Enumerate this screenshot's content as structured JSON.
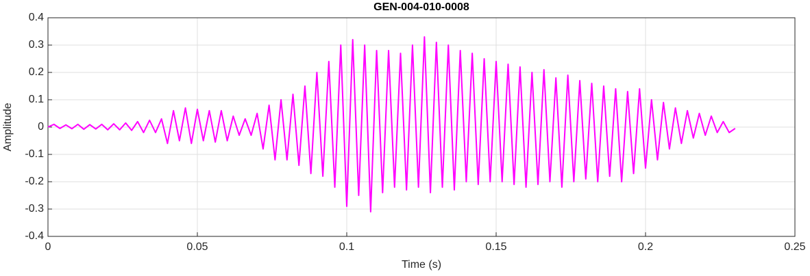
{
  "chart_data": {
    "type": "line",
    "title": "GEN-004-010-0008",
    "xlabel": "Time (s)",
    "ylabel": "Amplitude",
    "x": [
      0,
      0.002,
      0.004,
      0.006,
      0.008,
      0.01,
      0.012,
      0.014,
      0.016,
      0.018,
      0.02,
      0.022,
      0.024,
      0.026,
      0.028,
      0.03,
      0.032,
      0.034,
      0.036,
      0.038,
      0.04,
      0.042,
      0.044,
      0.046,
      0.048,
      0.05,
      0.052,
      0.054,
      0.056,
      0.058,
      0.06,
      0.062,
      0.064,
      0.066,
      0.068,
      0.07,
      0.072,
      0.074,
      0.076,
      0.078,
      0.08,
      0.082,
      0.084,
      0.086,
      0.088,
      0.09,
      0.092,
      0.094,
      0.096,
      0.098,
      0.1,
      0.102,
      0.104,
      0.106,
      0.108,
      0.11,
      0.112,
      0.114,
      0.116,
      0.118,
      0.12,
      0.122,
      0.124,
      0.126,
      0.128,
      0.13,
      0.132,
      0.134,
      0.136,
      0.138,
      0.14,
      0.142,
      0.144,
      0.146,
      0.148,
      0.15,
      0.152,
      0.154,
      0.156,
      0.158,
      0.16,
      0.162,
      0.164,
      0.166,
      0.168,
      0.17,
      0.172,
      0.174,
      0.176,
      0.178,
      0.18,
      0.182,
      0.184,
      0.186,
      0.188,
      0.19,
      0.192,
      0.194,
      0.196,
      0.198,
      0.2,
      0.202,
      0.204,
      0.206,
      0.208,
      0.21,
      0.212,
      0.214,
      0.216,
      0.218,
      0.22,
      0.222,
      0.224,
      0.226,
      0.228,
      0.23
    ],
    "series": [
      {
        "color": "#ff00ff",
        "values": [
          0,
          0.01,
          -0.005,
          0.008,
          -0.006,
          0.01,
          -0.008,
          0.009,
          -0.007,
          0.01,
          -0.01,
          0.012,
          -0.01,
          0.015,
          -0.012,
          0.02,
          -0.02,
          0.025,
          -0.02,
          0.03,
          -0.06,
          0.06,
          -0.05,
          0.07,
          -0.06,
          0.065,
          -0.05,
          0.06,
          -0.055,
          0.06,
          -0.05,
          0.04,
          -0.03,
          0.03,
          -0.03,
          0.05,
          -0.08,
          0.08,
          -0.12,
          0.1,
          -0.12,
          0.12,
          -0.14,
          0.15,
          -0.17,
          0.2,
          -0.18,
          0.24,
          -0.22,
          0.3,
          -0.29,
          0.32,
          -0.25,
          0.3,
          -0.31,
          0.28,
          -0.24,
          0.28,
          -0.22,
          0.27,
          -0.23,
          0.3,
          -0.22,
          0.33,
          -0.24,
          0.31,
          -0.22,
          0.3,
          -0.23,
          0.28,
          -0.2,
          0.27,
          -0.21,
          0.25,
          -0.2,
          0.24,
          -0.2,
          0.23,
          -0.21,
          0.22,
          -0.22,
          0.2,
          -0.21,
          0.21,
          -0.2,
          0.18,
          -0.22,
          0.19,
          -0.2,
          0.17,
          -0.19,
          0.16,
          -0.2,
          0.15,
          -0.18,
          0.14,
          -0.2,
          0.13,
          -0.17,
          0.14,
          -0.15,
          0.1,
          -0.12,
          0.09,
          -0.08,
          0.07,
          -0.06,
          0.06,
          -0.04,
          0.05,
          -0.03,
          0.04,
          -0.02,
          0.02,
          -0.02,
          -0.005
        ]
      }
    ],
    "xlim": [
      0,
      0.25
    ],
    "xticks": [
      0,
      0.05,
      0.1,
      0.15,
      0.2,
      0.25
    ],
    "ylim": [
      -0.4,
      0.4
    ],
    "yticks": [
      -0.4,
      -0.3,
      -0.2,
      -0.1,
      0,
      0.1,
      0.2,
      0.3,
      0.4
    ],
    "grid": true
  }
}
